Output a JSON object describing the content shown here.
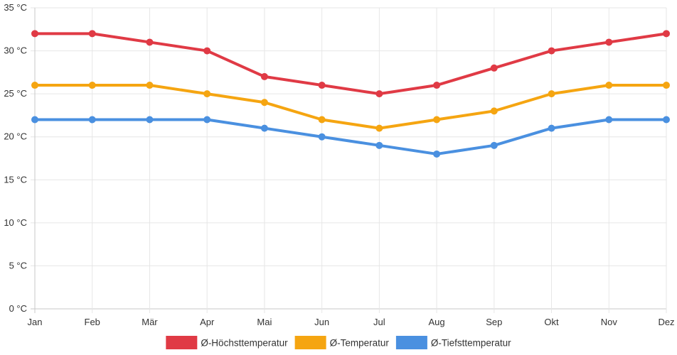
{
  "chart_data": {
    "type": "line",
    "categories": [
      "Jan",
      "Feb",
      "Mär",
      "Apr",
      "Mai",
      "Jun",
      "Jul",
      "Aug",
      "Sep",
      "Okt",
      "Nov",
      "Dez"
    ],
    "series": [
      {
        "name": "Ø-Höchsttemperatur",
        "color": "#e03a45",
        "values": [
          32,
          32,
          31,
          30,
          27,
          26,
          25,
          26,
          28,
          30,
          31,
          32
        ]
      },
      {
        "name": "Ø-Temperatur",
        "color": "#f5a511",
        "values": [
          26,
          26,
          26,
          25,
          24,
          22,
          21,
          22,
          23,
          25,
          26,
          26
        ]
      },
      {
        "name": "Ø-Tiefsttemperatur",
        "color": "#4a90e0",
        "values": [
          22,
          22,
          22,
          22,
          21,
          20,
          19,
          18,
          19,
          21,
          22,
          22
        ]
      }
    ],
    "y_ticks": [
      "0 °C",
      "5 °C",
      "10 °C",
      "15 °C",
      "20 °C",
      "25 °C",
      "30 °C",
      "35 °C"
    ],
    "ylim": [
      0,
      35
    ],
    "y_step": 5,
    "grid": true,
    "legend_position": "bottom"
  }
}
